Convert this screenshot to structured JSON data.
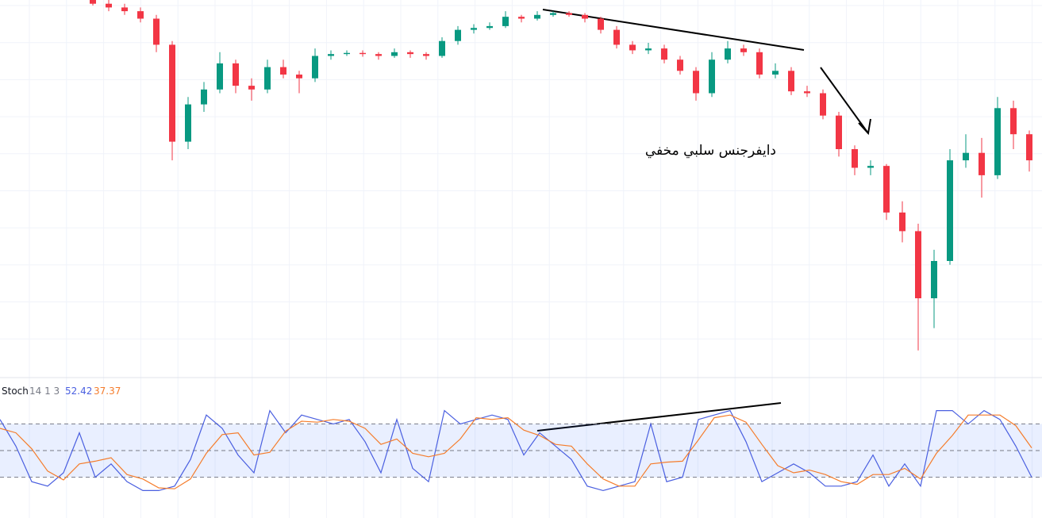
{
  "chart_data": [
    {
      "type": "candlestick",
      "annotations": [
        "دايفرجنس سلبي مخفي"
      ],
      "up_color": "#089981",
      "down_color": "#f23645",
      "ylim": [
        0,
        100
      ],
      "candles": [
        [
          100,
          100.5,
          98.5,
          99
        ],
        [
          99,
          100,
          97,
          98
        ],
        [
          98,
          99,
          96,
          97
        ],
        [
          97,
          98,
          94,
          95
        ],
        [
          95,
          96,
          86,
          88
        ],
        [
          88,
          89,
          57,
          62
        ],
        [
          62,
          74,
          60,
          72
        ],
        [
          72,
          78,
          70,
          76
        ],
        [
          76,
          86,
          75,
          83
        ],
        [
          83,
          84,
          75,
          77
        ],
        [
          77,
          79,
          73,
          76
        ],
        [
          76,
          84,
          75,
          82
        ],
        [
          82,
          84,
          79,
          80
        ],
        [
          80,
          81,
          75,
          79
        ],
        [
          79,
          87,
          78,
          85
        ],
        [
          85,
          86.5,
          84,
          85.5
        ],
        [
          85.5,
          86.5,
          85,
          85.8
        ],
        [
          85.8,
          86.5,
          84.8,
          85.5
        ],
        [
          85.5,
          86,
          84,
          85
        ],
        [
          85,
          87,
          84.5,
          86
        ],
        [
          86,
          86.5,
          84.5,
          85.5
        ],
        [
          85.5,
          86,
          84,
          85
        ],
        [
          85,
          90,
          84.5,
          89
        ],
        [
          89,
          93,
          88,
          92
        ],
        [
          92,
          93.5,
          91,
          92.5
        ],
        [
          92.5,
          94,
          92,
          93
        ],
        [
          93,
          97,
          92.5,
          95.5
        ],
        [
          95.5,
          96,
          94,
          95
        ],
        [
          95,
          97,
          94.5,
          96
        ],
        [
          96,
          97,
          95.5,
          96.5
        ],
        [
          96.5,
          97,
          95.5,
          96
        ],
        [
          96,
          96.5,
          94,
          95
        ],
        [
          95,
          95.5,
          91,
          92
        ],
        [
          92,
          93,
          87,
          88
        ],
        [
          88,
          89,
          85.5,
          86.5
        ],
        [
          86.5,
          88.5,
          85.5,
          87
        ],
        [
          87,
          88,
          83,
          84
        ],
        [
          84,
          85,
          80,
          81
        ],
        [
          81,
          82,
          73,
          75
        ],
        [
          75,
          86,
          74,
          84
        ],
        [
          84,
          89,
          83,
          87
        ],
        [
          87,
          88,
          85,
          86
        ],
        [
          86,
          87,
          79,
          80
        ],
        [
          80,
          83,
          79,
          81
        ],
        [
          81,
          82,
          74.5,
          75.5
        ],
        [
          75.5,
          77,
          74,
          75
        ],
        [
          75,
          76,
          68,
          69
        ],
        [
          69,
          70,
          58,
          60
        ],
        [
          60,
          61,
          53,
          55
        ],
        [
          55,
          57,
          53,
          55.5
        ],
        [
          55.5,
          56,
          41,
          43
        ],
        [
          43,
          46,
          35,
          38
        ],
        [
          38,
          40,
          6,
          20
        ],
        [
          20,
          33,
          12,
          30
        ],
        [
          30,
          60,
          29,
          57
        ],
        [
          57,
          64,
          55,
          59
        ],
        [
          59,
          63,
          47,
          53
        ],
        [
          53,
          74,
          52,
          71
        ],
        [
          71,
          73,
          60,
          64
        ],
        [
          64,
          65,
          54,
          57
        ]
      ]
    },
    {
      "type": "line",
      "title": "Stoch",
      "subtitle": "14 1 3",
      "legend_values": [
        "52.42",
        "37.37"
      ],
      "ylim": [
        0,
        100
      ],
      "levels": [
        80,
        50,
        20
      ],
      "band_color": "#2962ff",
      "series": [
        {
          "color": "#4a5fe0",
          "values": [
            85,
            55,
            15,
            10,
            25,
            70,
            20,
            35,
            15,
            5,
            5,
            10,
            40,
            90,
            75,
            45,
            25,
            95,
            70,
            90,
            85,
            80,
            85,
            60,
            25,
            85,
            30,
            15,
            95,
            80,
            85,
            90,
            85,
            45,
            70,
            55,
            40,
            10,
            5,
            10,
            15,
            80,
            15,
            20,
            85,
            90,
            95,
            60,
            15,
            25,
            35,
            25,
            10,
            10,
            15,
            45,
            10,
            35,
            10,
            95,
            95,
            80,
            95,
            85,
            55,
            20
          ]
        },
        {
          "color": "#f57c2b",
          "values": [
            75,
            70,
            52,
            27,
            17,
            35,
            38,
            42,
            23,
            18,
            8,
            7,
            18,
            47,
            68,
            70,
            45,
            48,
            72,
            83,
            82,
            85,
            83,
            75,
            57,
            63,
            47,
            43,
            47,
            63,
            87,
            85,
            87,
            73,
            67,
            57,
            55,
            35,
            18,
            10,
            10,
            35,
            37,
            38,
            62,
            87,
            90,
            82,
            57,
            33,
            25,
            28,
            23,
            15,
            12,
            23,
            23,
            30,
            18,
            47,
            67,
            90,
            90,
            90,
            78,
            53
          ]
        }
      ]
    }
  ]
}
